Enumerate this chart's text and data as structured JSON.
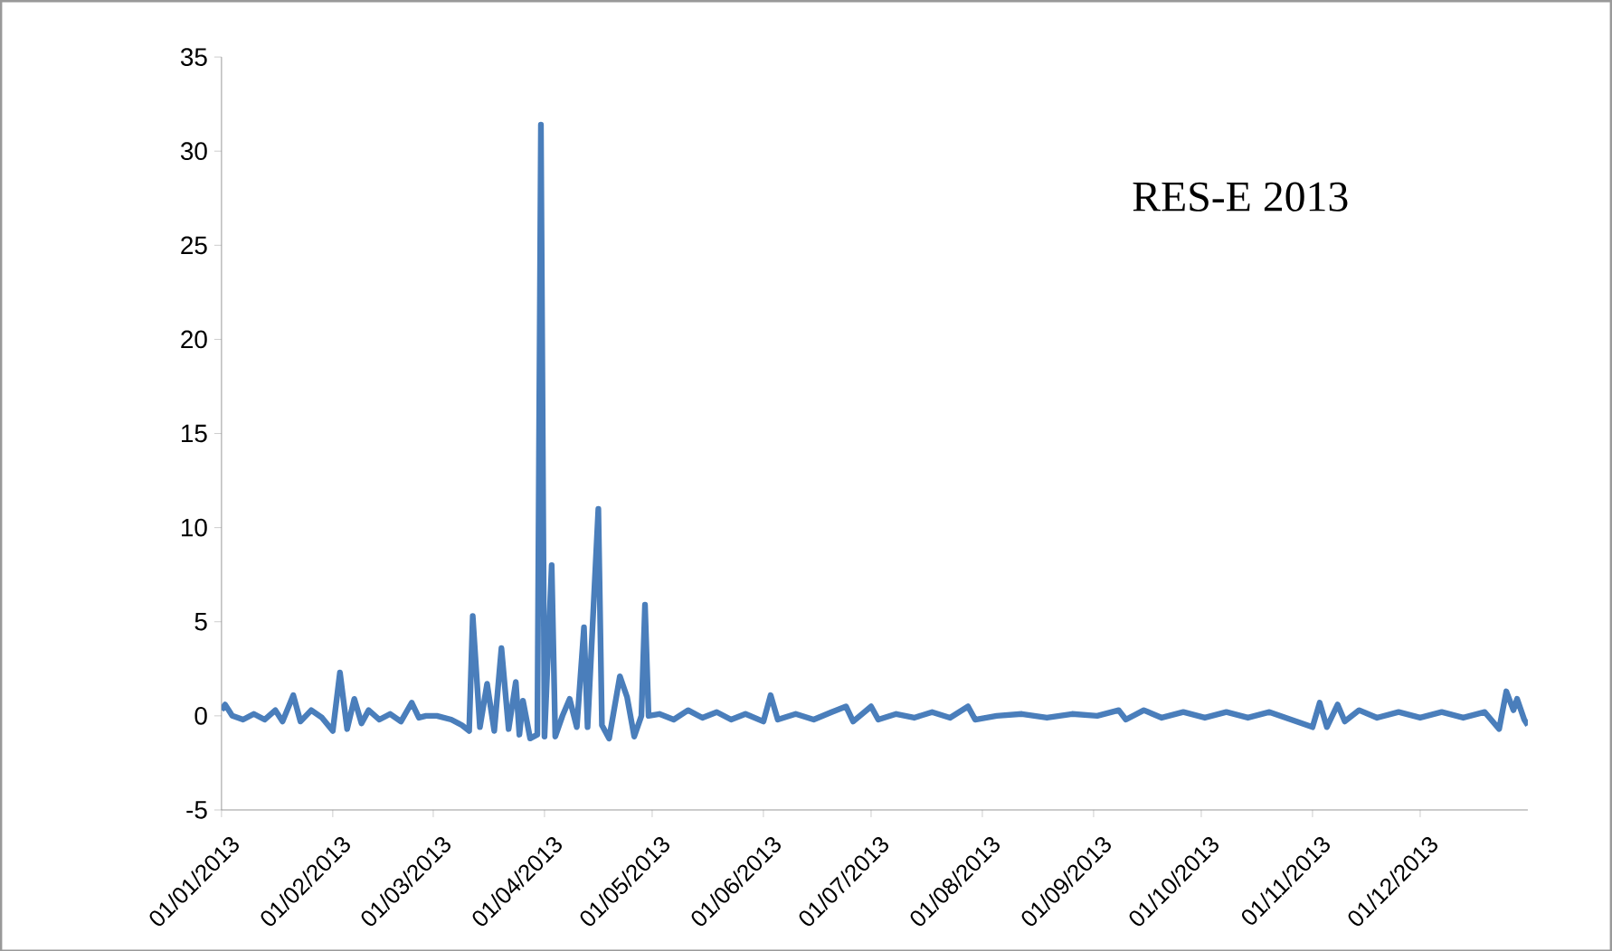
{
  "chart_data": {
    "type": "line",
    "title": "RES-E 2013",
    "x": [
      "2013-01-01",
      "2013-01-02",
      "2013-01-04",
      "2013-01-07",
      "2013-01-10",
      "2013-01-13",
      "2013-01-16",
      "2013-01-18",
      "2013-01-21",
      "2013-01-23",
      "2013-01-26",
      "2013-01-29",
      "2013-02-01",
      "2013-02-03",
      "2013-02-05",
      "2013-02-07",
      "2013-02-09",
      "2013-02-11",
      "2013-02-14",
      "2013-02-17",
      "2013-02-20",
      "2013-02-23",
      "2013-02-25",
      "2013-02-27",
      "2013-03-02",
      "2013-03-06",
      "2013-03-09",
      "2013-03-11",
      "2013-03-12",
      "2013-03-14",
      "2013-03-16",
      "2013-03-18",
      "2013-03-20",
      "2013-03-22",
      "2013-03-24",
      "2013-03-25",
      "2013-03-26",
      "2013-03-28",
      "2013-03-30",
      "2013-03-31",
      "2013-04-01",
      "2013-04-03",
      "2013-04-04",
      "2013-04-06",
      "2013-04-08",
      "2013-04-10",
      "2013-04-12",
      "2013-04-13",
      "2013-04-16",
      "2013-04-17",
      "2013-04-19",
      "2013-04-22",
      "2013-04-24",
      "2013-04-26",
      "2013-04-28",
      "2013-04-29",
      "2013-04-30",
      "2013-05-03",
      "2013-05-07",
      "2013-05-11",
      "2013-05-15",
      "2013-05-19",
      "2013-05-23",
      "2013-05-27",
      "2013-06-01",
      "2013-06-03",
      "2013-06-05",
      "2013-06-10",
      "2013-06-15",
      "2013-06-20",
      "2013-06-24",
      "2013-06-26",
      "2013-07-01",
      "2013-07-03",
      "2013-07-08",
      "2013-07-13",
      "2013-07-18",
      "2013-07-23",
      "2013-07-28",
      "2013-07-30",
      "2013-08-05",
      "2013-08-12",
      "2013-08-19",
      "2013-08-26",
      "2013-09-02",
      "2013-09-08",
      "2013-09-10",
      "2013-09-15",
      "2013-09-20",
      "2013-09-26",
      "2013-10-02",
      "2013-10-08",
      "2013-10-14",
      "2013-10-20",
      "2013-10-26",
      "2013-11-01",
      "2013-11-03",
      "2013-11-05",
      "2013-11-08",
      "2013-11-10",
      "2013-11-14",
      "2013-11-19",
      "2013-11-25",
      "2013-12-01",
      "2013-12-07",
      "2013-12-13",
      "2013-12-19",
      "2013-12-23",
      "2013-12-25",
      "2013-12-27",
      "2013-12-28",
      "2013-12-30",
      "2013-12-31"
    ],
    "series": [
      {
        "color": "#4a7ebb",
        "values": [
          0.3,
          0.6,
          0.0,
          -0.2,
          0.1,
          -0.2,
          0.3,
          -0.3,
          1.1,
          -0.3,
          0.3,
          -0.1,
          -0.8,
          2.3,
          -0.7,
          0.9,
          -0.4,
          0.3,
          -0.2,
          0.1,
          -0.3,
          0.7,
          -0.1,
          0.0,
          0.0,
          -0.2,
          -0.5,
          -0.8,
          5.3,
          -0.6,
          1.7,
          -0.8,
          3.6,
          -0.7,
          1.8,
          -1.0,
          0.8,
          -1.2,
          -1.0,
          31.4,
          -1.1,
          8.0,
          -1.1,
          0.0,
          0.9,
          -0.6,
          4.7,
          -0.6,
          11.0,
          -0.5,
          -1.2,
          2.1,
          1.0,
          -1.1,
          0.0,
          5.9,
          0.0,
          0.1,
          -0.2,
          0.3,
          -0.1,
          0.2,
          -0.2,
          0.1,
          -0.3,
          1.1,
          -0.2,
          0.1,
          -0.2,
          0.2,
          0.5,
          -0.3,
          0.5,
          -0.2,
          0.1,
          -0.1,
          0.2,
          -0.1,
          0.5,
          -0.2,
          0.0,
          0.1,
          -0.1,
          0.1,
          0.0,
          0.3,
          -0.2,
          0.3,
          -0.1,
          0.2,
          -0.1,
          0.2,
          -0.1,
          0.2,
          -0.2,
          -0.6,
          0.7,
          -0.6,
          0.6,
          -0.3,
          0.3,
          -0.1,
          0.2,
          -0.1,
          0.2,
          -0.1,
          0.2,
          -0.7,
          1.3,
          0.3,
          0.9,
          -0.2,
          -0.5
        ]
      }
    ],
    "xlim": [
      "2013-01-01",
      "2013-12-31"
    ],
    "xticks": [
      {
        "value": "2013-01-01",
        "label": "01/01/2013"
      },
      {
        "value": "2013-02-01",
        "label": "01/02/2013"
      },
      {
        "value": "2013-03-01",
        "label": "01/03/2013"
      },
      {
        "value": "2013-04-01",
        "label": "01/04/2013"
      },
      {
        "value": "2013-05-01",
        "label": "01/05/2013"
      },
      {
        "value": "2013-06-01",
        "label": "01/06/2013"
      },
      {
        "value": "2013-07-01",
        "label": "01/07/2013"
      },
      {
        "value": "2013-08-01",
        "label": "01/08/2013"
      },
      {
        "value": "2013-09-01",
        "label": "01/09/2013"
      },
      {
        "value": "2013-10-01",
        "label": "01/10/2013"
      },
      {
        "value": "2013-11-01",
        "label": "01/11/2013"
      },
      {
        "value": "2013-12-01",
        "label": "01/12/2013"
      }
    ],
    "ylim": [
      -5,
      35
    ],
    "yticks": [
      -5,
      0,
      5,
      10,
      15,
      20,
      25,
      30,
      35
    ],
    "marker": "none",
    "line_style": "solid"
  }
}
